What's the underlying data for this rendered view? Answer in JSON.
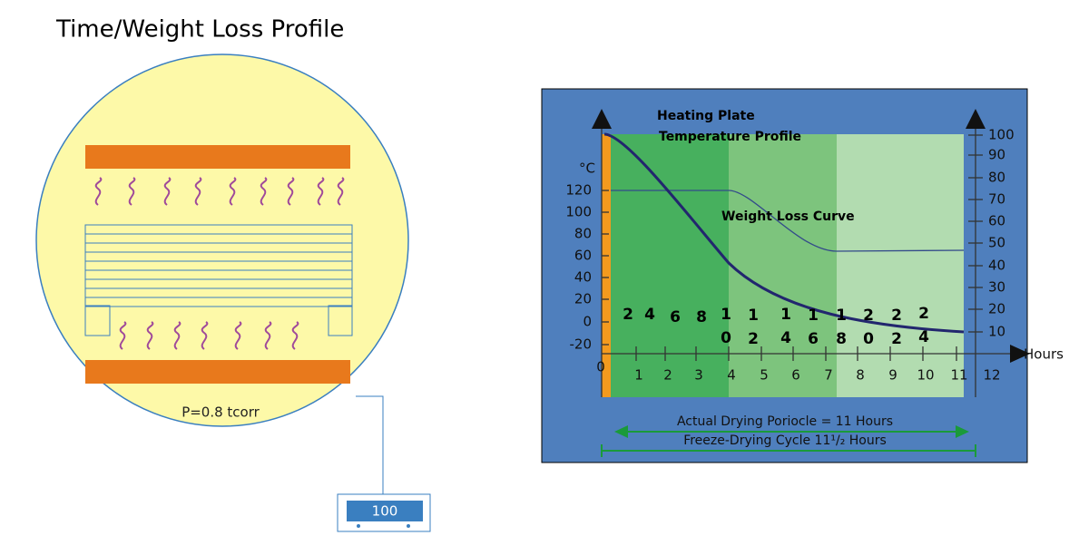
{
  "header": {
    "title": "Time/Weight Loss Profile"
  },
  "chamber": {
    "pressure_label": "P=0.8 tcorr",
    "gauge_reading": "100"
  },
  "profile_chart": {
    "heating_label_line1": "Heating  Plate",
    "heating_label_line2": "Temperature Profile",
    "weight_label": "Weight Loss Curve",
    "left_unit": "°C",
    "left_ticks": [
      "120",
      "100",
      "80",
      "60",
      "40",
      "20",
      "0",
      "-20"
    ],
    "right_ticks": [
      "100",
      "90",
      "80",
      "70",
      "60",
      "50",
      "40",
      "30",
      "20",
      "10"
    ],
    "x_ticks": [
      "0",
      "1",
      "2",
      "3",
      "4",
      "5",
      "6",
      "7",
      "8",
      "9",
      "10",
      "11",
      "12"
    ],
    "x_unit": "Hours",
    "overlay_labels": [
      [
        "2"
      ],
      [
        "4"
      ],
      [
        "6"
      ],
      [
        "8"
      ],
      [
        "1",
        "0"
      ],
      [
        "1",
        "2"
      ],
      [
        "1",
        "4"
      ],
      [
        "1",
        "6"
      ],
      [
        "1",
        "8"
      ],
      [
        "2",
        "0"
      ],
      [
        "2",
        "2"
      ],
      [
        "2",
        "4"
      ]
    ],
    "drying_period": "Actual Drying Poriocle = 11 Hours",
    "cycle": "Freeze-Drying Cycle  11¹/₂ Hours"
  }
}
